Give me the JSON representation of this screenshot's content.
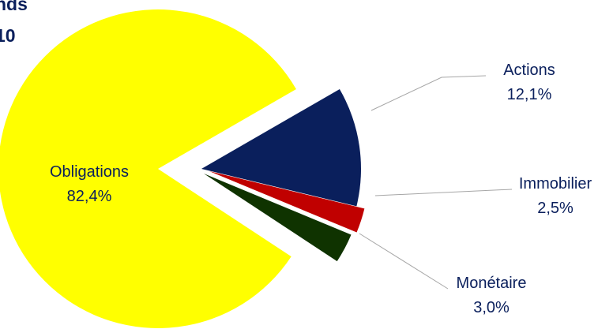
{
  "chart_data": {
    "type": "pie",
    "title_lines": [
      "nds",
      "10"
    ],
    "slices": [
      {
        "label": "Actions",
        "value_label": "12,1%",
        "value": 12.1,
        "color": "#0a1f5c"
      },
      {
        "label": "Immobilier",
        "value_label": "2,5%",
        "value": 2.5,
        "color": "#c00000"
      },
      {
        "label": "Monétaire",
        "value_label": "3,0%",
        "value": 3.0,
        "color": "#0f3300"
      },
      {
        "label": "Obligations",
        "value_label": "82,4%",
        "value": 82.4,
        "color": "#ffff00"
      }
    ],
    "exploded": true
  }
}
